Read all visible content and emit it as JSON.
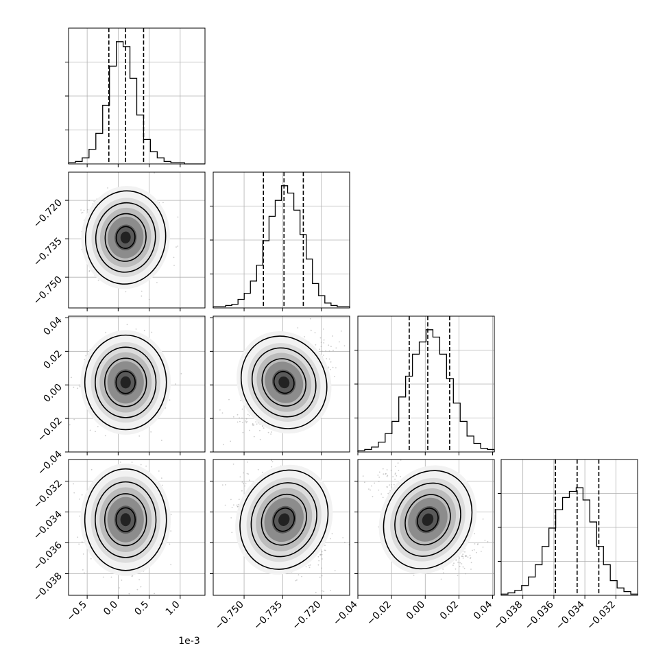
{
  "chart_data": {
    "type": "corner",
    "offset_text": "1e-3",
    "grid": true,
    "parameters": [
      {
        "range": [
          -0.8,
          1.4
        ],
        "ticks": [
          -0.5,
          0.0,
          0.5,
          1.0
        ],
        "tick_labels": [
          "−0.5",
          "0.0",
          "0.5",
          "1.0"
        ],
        "quantiles": [
          -0.15,
          0.12,
          0.41
        ],
        "hist": [
          1,
          2,
          5,
          12,
          25,
          48,
          80,
          100,
          96,
          70,
          40,
          20,
          10,
          5,
          2,
          1,
          1,
          0,
          0,
          0
        ]
      },
      {
        "range": [
          -0.762,
          -0.709
        ],
        "ticks": [
          -0.75,
          -0.735,
          -0.72
        ],
        "tick_labels": [
          "−0.750",
          "−0.735",
          "−0.720"
        ],
        "quantiles": [
          -0.7425,
          -0.7345,
          -0.727
        ],
        "hist": [
          1,
          1,
          2,
          3,
          7,
          12,
          22,
          35,
          55,
          75,
          88,
          100,
          94,
          80,
          60,
          40,
          20,
          10,
          4,
          2,
          1,
          1
        ]
      },
      {
        "range": [
          -0.04,
          0.041
        ],
        "ticks": [
          -0.04,
          -0.02,
          0.0,
          0.02,
          0.04
        ],
        "tick_labels": [
          "−0.04",
          "−0.02",
          "0.00",
          "0.02",
          "0.04"
        ],
        "quantiles": [
          -0.0095,
          0.0015,
          0.0145
        ],
        "hist": [
          1,
          2,
          4,
          8,
          15,
          25,
          45,
          62,
          80,
          90,
          100,
          94,
          80,
          60,
          40,
          25,
          13,
          7,
          3,
          2
        ]
      },
      {
        "range": [
          -0.0394,
          -0.0306
        ],
        "ticks": [
          -0.038,
          -0.036,
          -0.034,
          -0.032
        ],
        "tick_labels": [
          "−0.038",
          "−0.036",
          "−0.034",
          "−0.032"
        ],
        "quantiles": [
          -0.0359,
          -0.0345,
          -0.0331
        ],
        "hist": [
          1,
          2,
          4,
          8,
          15,
          25,
          40,
          55,
          70,
          80,
          85,
          88,
          78,
          60,
          40,
          25,
          12,
          6,
          3,
          1
        ]
      }
    ],
    "correlations": [
      [
        1.0,
        -0.1,
        0.0,
        0.0
      ],
      [
        -0.1,
        1.0,
        0.55,
        -0.45
      ],
      [
        0.0,
        0.55,
        1.0,
        -0.55
      ],
      [
        0.0,
        -0.45,
        -0.55,
        1.0
      ]
    ]
  }
}
